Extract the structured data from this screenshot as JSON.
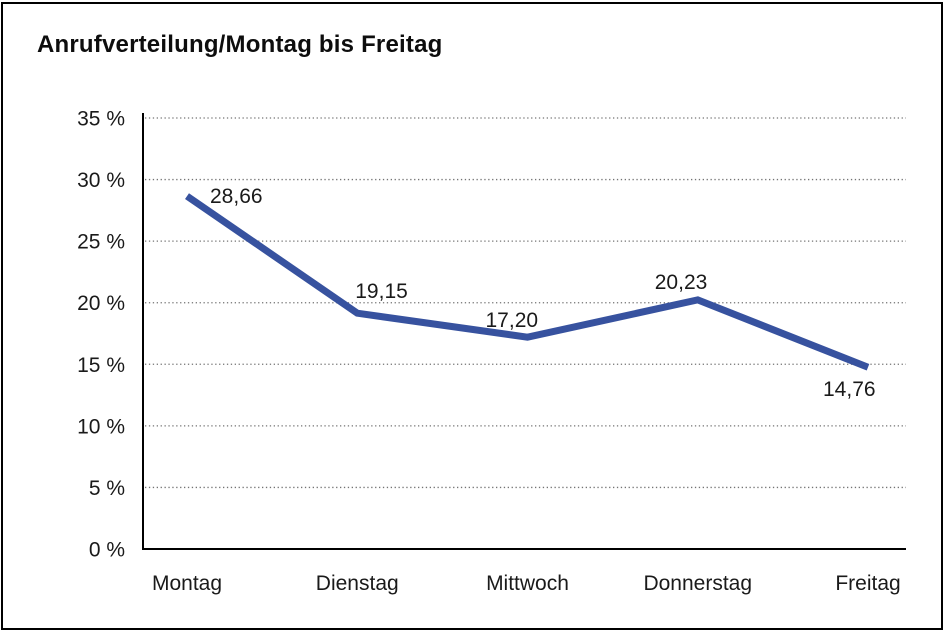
{
  "title": "Anrufverteilung/Montag bis Freitag",
  "colors": {
    "line": "#37529F",
    "grid": "#737373",
    "axis": "#000000",
    "text": "#1a1a1a",
    "background": "#ffffff",
    "border": "#000000"
  },
  "chart_data": {
    "type": "line",
    "title": "Anrufverteilung/Montag bis Freitag",
    "categories": [
      "Montag",
      "Dienstag",
      "Mittwoch",
      "Donnerstag",
      "Freitag"
    ],
    "values": [
      28.66,
      19.15,
      17.2,
      20.23,
      14.76
    ],
    "data_labels": [
      "28,66",
      "19,15",
      "17,20",
      "20,23",
      "14,76"
    ],
    "xlabel": "",
    "ylabel": "",
    "ylim": [
      0,
      35
    ],
    "ytick_step": 5,
    "ytick_labels": [
      "0 %",
      "5 %",
      "10 %",
      "15 %",
      "20 %",
      "25 %",
      "30 %",
      "35 %"
    ],
    "grid": "horizontal-dotted",
    "legend": "none"
  }
}
